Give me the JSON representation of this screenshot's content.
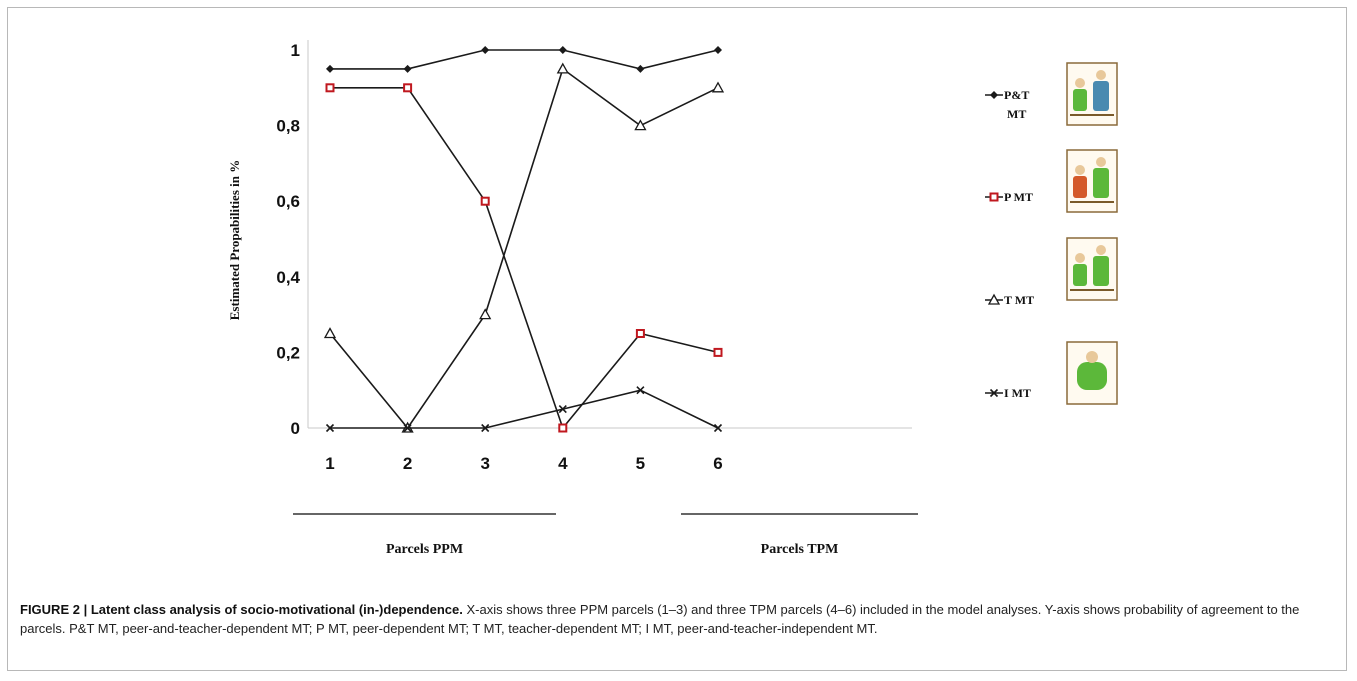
{
  "chart_data": {
    "type": "line",
    "x": [
      1,
      2,
      3,
      4,
      5,
      6
    ],
    "ylabel": "Estimated Propabilities in %",
    "ylim": [
      0,
      1
    ],
    "yticks": [
      "0",
      "0,2",
      "0,4",
      "0,6",
      "0,8",
      "1"
    ],
    "xticks": [
      "1",
      "2",
      "3",
      "4",
      "5",
      "6"
    ],
    "groups": [
      {
        "label": "Parcels PPM",
        "from": 1,
        "to": 3
      },
      {
        "label": "Parcels TPM",
        "from": 4,
        "to": 6
      }
    ],
    "series": [
      {
        "name": "P&T MT",
        "marker": "diamond",
        "values": [
          0.95,
          0.95,
          1.0,
          1.0,
          0.95,
          1.0
        ]
      },
      {
        "name": "P MT",
        "marker": "square",
        "values": [
          0.9,
          0.9,
          0.6,
          0.0,
          0.25,
          0.2
        ]
      },
      {
        "name": "T MT",
        "marker": "triangle",
        "values": [
          0.25,
          0.0,
          0.3,
          0.95,
          0.8,
          0.9
        ]
      },
      {
        "name": "I MT",
        "marker": "cross",
        "values": [
          0.0,
          0.0,
          0.0,
          0.05,
          0.1,
          0.0
        ]
      }
    ],
    "legend": [
      "P&T MT",
      "P MT",
      "T MT",
      "I MT"
    ],
    "legend_placement": "right",
    "grid": false
  },
  "caption": {
    "label": "FIGURE 2 | Latent class analysis of socio-motivational (in-)dependence.",
    "text": " X-axis shows three PPM parcels (1–3) and three TPM parcels (4–6) included in the model analyses. Y-axis shows probability of agreement to the parcels. P&T MT, peer-and-teacher-dependent MT; P MT, peer-dependent MT; T MT, teacher-dependent MT; I MT, peer-and-teacher-independent MT."
  },
  "colors": {
    "line": "#1a1a1a",
    "p_mt_marker": "#c0181f",
    "picture_green": "#5cb83a",
    "picture_brown": "#7a5a2a"
  }
}
